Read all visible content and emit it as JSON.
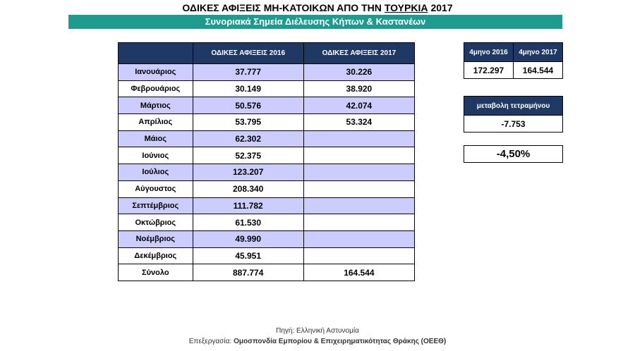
{
  "title_parts": [
    "ΟΔΙΚΕΣ ΑΦΙΞΕΙΣ ΜΗ-ΚΑΤΟΙΚΩΝ ΑΠΟ ΤΗΝ",
    "ΤΟΥΡΚΙΑ",
    "2017"
  ],
  "subtitle": "Συνοριακά Σημεία Διέλευσης Κήπων & Καστανέων",
  "table": {
    "headers": [
      "ΟΔΙΚΕΣ ΑΦΙΞΕΙΣ 2016",
      "ΟΔΙΚΕΣ ΑΦΙΞΕΙΣ 2017"
    ],
    "rows": [
      [
        "Ιανουάριος",
        "37.777",
        "30.226"
      ],
      [
        "Φεβρουάριος",
        "30.149",
        "38.920"
      ],
      [
        "Μάρτιος",
        "50.576",
        "42.074"
      ],
      [
        "Απρίλιος",
        "53.795",
        "53.324"
      ],
      [
        "Μάιος",
        "62.302"
      ],
      [
        "Ιούνιος",
        "52.375"
      ],
      [
        "Ιούλιος",
        "123.207"
      ],
      [
        "Αύγουστος",
        "208.340"
      ],
      [
        "Σεπτέμβριος",
        "111.782"
      ],
      [
        "Οκτώβριος",
        "61.530"
      ],
      [
        "Νοέμβριος",
        "49.990"
      ],
      [
        "Δεκέμβριος",
        "45.951"
      ],
      [
        "Σύνολο",
        "887.774",
        "164.544"
      ]
    ]
  },
  "four_month": {
    "headers": [
      "4μηνο 2016",
      "4μηνο 2017"
    ],
    "values": [
      "172.297",
      "164.544"
    ]
  },
  "change": {
    "header": "μεταβολη τετραμήνου",
    "value": "-7.753"
  },
  "percent": "-4,50%",
  "footer": {
    "source": "Πηγή: Ελληνική Αστυνομία",
    "processing_label": "Επεξεργασία:",
    "processing_org": "Ομοσπονδία Εμπορίου & Επιχειρηματικότητας Θράκης (ΟΕΕΘ)"
  }
}
